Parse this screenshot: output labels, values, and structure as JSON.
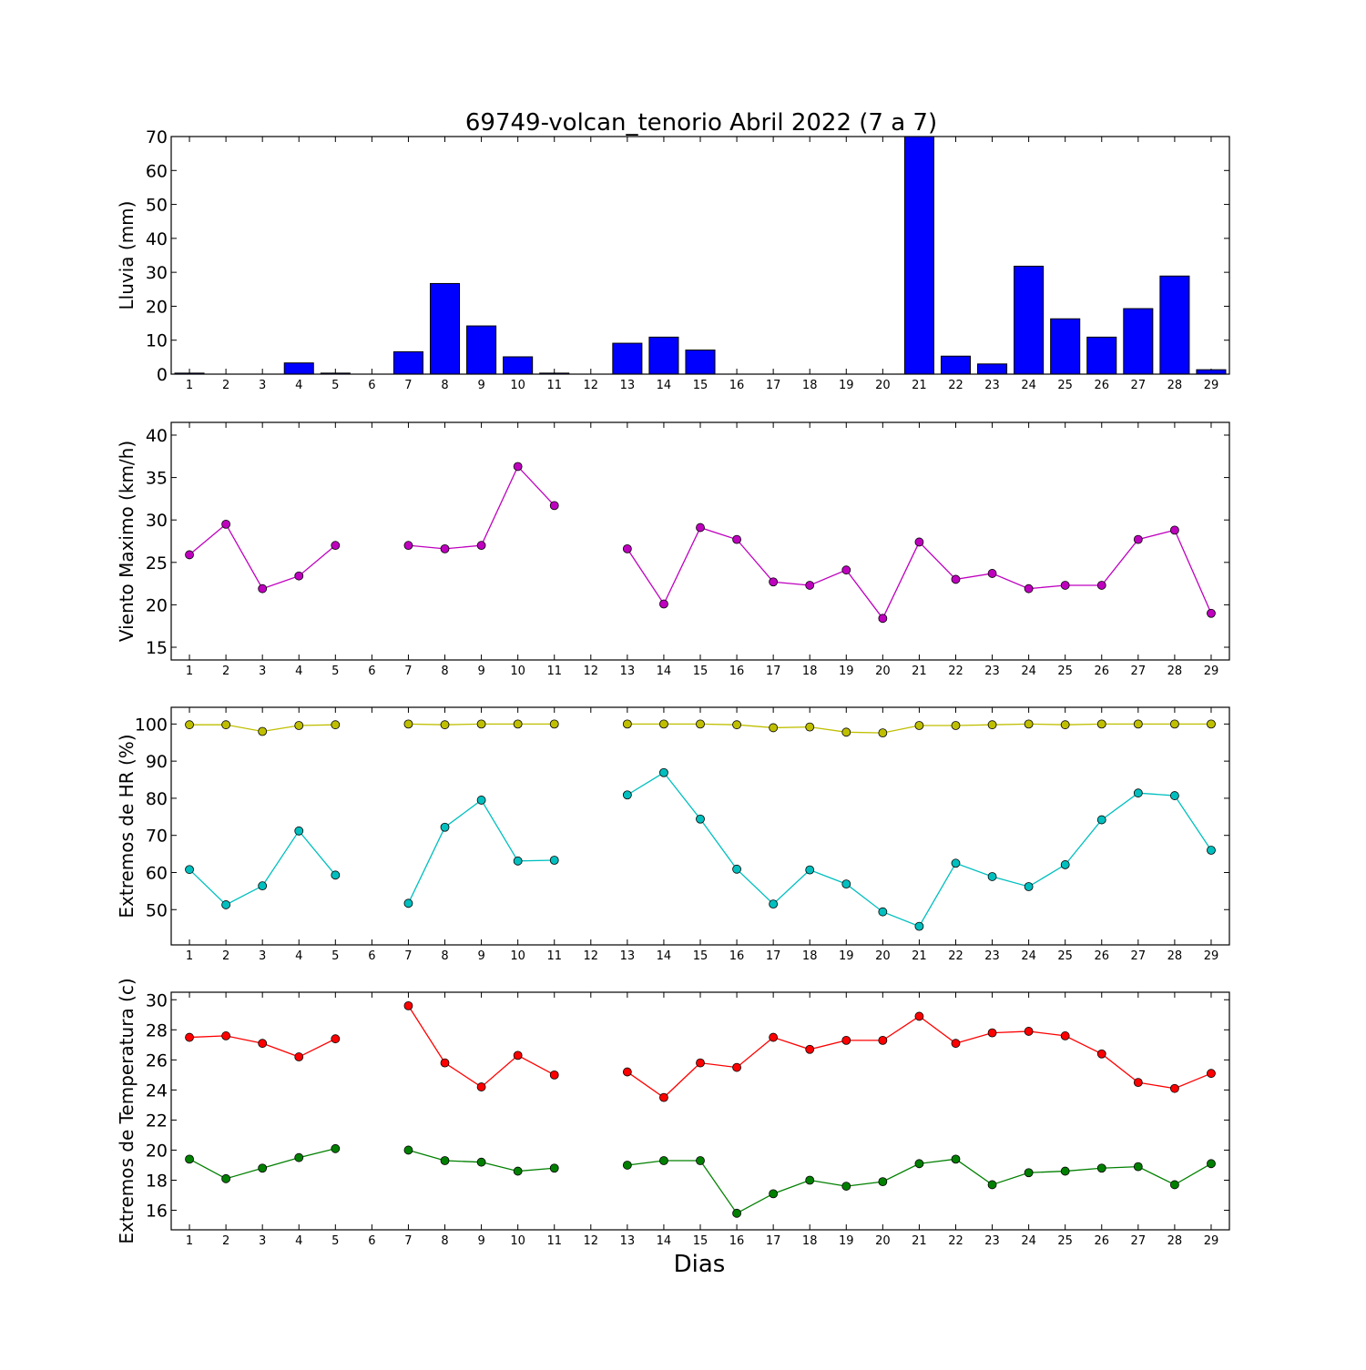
{
  "title": "69749-volcan_tenorio Abril 2022  (7 a 7)",
  "xlabel": "Dias",
  "days": [
    1,
    2,
    3,
    4,
    5,
    6,
    7,
    8,
    9,
    10,
    11,
    12,
    13,
    14,
    15,
    16,
    17,
    18,
    19,
    20,
    21,
    22,
    23,
    24,
    25,
    26,
    27,
    28,
    29
  ],
  "chart_data": [
    {
      "type": "bar",
      "ylabel": "Lluvia (mm)",
      "ylim": [
        0,
        70
      ],
      "yticks": [
        0,
        10,
        20,
        30,
        40,
        50,
        60,
        70
      ],
      "categories": [
        1,
        2,
        3,
        4,
        5,
        6,
        7,
        8,
        9,
        10,
        11,
        12,
        13,
        14,
        15,
        16,
        17,
        18,
        19,
        20,
        21,
        22,
        23,
        24,
        25,
        26,
        27,
        28,
        29
      ],
      "series": [
        {
          "color": "#0000ff",
          "values": [
            0.3,
            0,
            0,
            3.3,
            0.3,
            0,
            6.6,
            26.7,
            14.2,
            5.1,
            0.3,
            0,
            9.1,
            10.9,
            7.1,
            0,
            0,
            0,
            0,
            0,
            70,
            5.3,
            3.0,
            31.8,
            16.3,
            10.9,
            19.3,
            28.9,
            1.3
          ]
        }
      ]
    },
    {
      "type": "line",
      "ylabel": "Viento Maximo (km/h)",
      "ylim": [
        13.5,
        41.5
      ],
      "yticks": [
        15,
        20,
        25,
        30,
        35,
        40
      ],
      "x": [
        1,
        2,
        3,
        4,
        5,
        6,
        7,
        8,
        9,
        10,
        11,
        12,
        13,
        14,
        15,
        16,
        17,
        18,
        19,
        20,
        21,
        22,
        23,
        24,
        25,
        26,
        27,
        28,
        29
      ],
      "series": [
        {
          "color": "#bf00bf",
          "values": [
            25.9,
            29.5,
            21.9,
            23.4,
            27.0,
            null,
            27.0,
            26.6,
            27.0,
            36.3,
            31.7,
            null,
            26.6,
            20.1,
            29.1,
            27.7,
            22.7,
            22.3,
            24.1,
            18.4,
            27.4,
            23.0,
            23.7,
            21.9,
            22.3,
            22.3,
            27.7,
            28.8,
            19.0
          ]
        }
      ]
    },
    {
      "type": "line",
      "ylabel": "Extremos de HR (%)",
      "ylim": [
        40.5,
        104.5
      ],
      "yticks": [
        50,
        60,
        70,
        80,
        90,
        100
      ],
      "x": [
        1,
        2,
        3,
        4,
        5,
        6,
        7,
        8,
        9,
        10,
        11,
        12,
        13,
        14,
        15,
        16,
        17,
        18,
        19,
        20,
        21,
        22,
        23,
        24,
        25,
        26,
        27,
        28,
        29
      ],
      "series": [
        {
          "color": "#bfbf00",
          "values": [
            99.8,
            99.8,
            98.0,
            99.6,
            99.8,
            null,
            100,
            99.8,
            100,
            100,
            100,
            null,
            100,
            100,
            100,
            99.8,
            99.0,
            99.2,
            97.8,
            97.6,
            99.6,
            99.6,
            99.8,
            100,
            99.8,
            100,
            100,
            100,
            100
          ]
        },
        {
          "color": "#00bfbf",
          "values": [
            60.8,
            51.3,
            56.4,
            71.2,
            59.3,
            null,
            51.7,
            72.2,
            79.5,
            63.1,
            63.3,
            null,
            80.9,
            86.9,
            74.4,
            60.9,
            51.5,
            60.7,
            56.9,
            49.4,
            45.5,
            62.5,
            58.9,
            56.2,
            62.1,
            74.2,
            81.4,
            80.7,
            66.0
          ]
        }
      ]
    },
    {
      "type": "line",
      "ylabel": "Extremos de Temperatura (c)",
      "ylim": [
        14.7,
        30.5
      ],
      "yticks": [
        16,
        18,
        20,
        22,
        24,
        26,
        28,
        30
      ],
      "x": [
        1,
        2,
        3,
        4,
        5,
        6,
        7,
        8,
        9,
        10,
        11,
        12,
        13,
        14,
        15,
        16,
        17,
        18,
        19,
        20,
        21,
        22,
        23,
        24,
        25,
        26,
        27,
        28,
        29
      ],
      "series": [
        {
          "color": "#ff0000",
          "values": [
            27.5,
            27.6,
            27.1,
            26.2,
            27.4,
            null,
            29.6,
            25.8,
            24.2,
            26.3,
            25.0,
            null,
            25.2,
            23.5,
            25.8,
            25.5,
            27.5,
            26.7,
            27.3,
            27.3,
            28.9,
            27.1,
            27.8,
            27.9,
            27.6,
            26.4,
            24.5,
            24.1,
            25.1
          ]
        },
        {
          "color": "#008000",
          "values": [
            19.4,
            18.1,
            18.8,
            19.5,
            20.1,
            null,
            20.0,
            19.3,
            19.2,
            18.6,
            18.8,
            null,
            19.0,
            19.3,
            19.3,
            15.8,
            17.1,
            18.0,
            17.6,
            17.9,
            19.1,
            19.4,
            17.7,
            18.5,
            18.6,
            18.8,
            18.9,
            17.7,
            19.1
          ]
        }
      ]
    }
  ]
}
